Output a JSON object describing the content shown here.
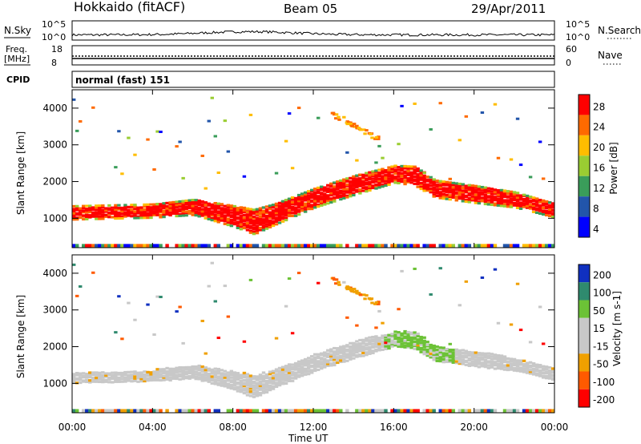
{
  "header": {
    "station": "Hokkaido (fitACF)",
    "beam": "Beam 05",
    "date": "29/Apr/2011"
  },
  "noise_panel": {
    "left_label": "N.Sky",
    "right_label": "N.Search",
    "left_ticks": [
      "10^5",
      "10^0"
    ],
    "right_ticks": [
      "10^5",
      "10^0"
    ]
  },
  "freq_panel": {
    "left_label_1": "Freq.",
    "left_label_2": "[MHz]",
    "right_label": "Nave",
    "left_ticks": [
      "18",
      "8"
    ],
    "right_ticks": [
      "60",
      "0"
    ]
  },
  "cpid_panel": {
    "label": "CPID",
    "value": "normal (fast) 151"
  },
  "chart_data": [
    {
      "type": "heatmap",
      "name": "power",
      "ylabel": "Slant Range [km]",
      "yticks": [
        1000,
        2000,
        3000,
        4000
      ],
      "ylim": [
        200,
        4500
      ],
      "colorbar": {
        "label": "Power [dB]",
        "ticks": [
          "28",
          "24",
          "20",
          "16",
          "12",
          "8",
          "4"
        ],
        "colors": [
          "#ff0000",
          "#ff6a00",
          "#ffbd00",
          "#9acd32",
          "#3a9d5a",
          "#2255aa",
          "#0000ff"
        ]
      },
      "bands": [
        {
          "x": [
            0,
            4,
            6,
            8,
            9,
            10,
            12,
            14,
            16,
            17,
            18,
            20,
            22,
            24
          ],
          "y_center": [
            1150,
            1200,
            1300,
            1050,
            900,
            1100,
            1550,
            1900,
            2200,
            2150,
            1800,
            1650,
            1500,
            1200
          ],
          "thickness": [
            300,
            300,
            350,
            500,
            600,
            500,
            450,
            450,
            400,
            450,
            400,
            400,
            350,
            300
          ],
          "level": "28"
        }
      ]
    },
    {
      "type": "heatmap",
      "name": "velocity",
      "ylabel": "Slant Range [km]",
      "yticks": [
        1000,
        2000,
        3000,
        4000
      ],
      "ylim": [
        200,
        4500
      ],
      "colorbar": {
        "label": "Velocity [m s-1]",
        "ticks": [
          "200",
          "100",
          "50",
          "15",
          "-15",
          "-50",
          "-100",
          "-200"
        ],
        "colors": [
          "#1030c0",
          "#2f8a6e",
          "#6cc236",
          "#c8c8c8",
          "#c8c8c8",
          "#f0a000",
          "#ff5a00",
          "#ff0000"
        ]
      }
    }
  ],
  "xaxis": {
    "label": "Time UT",
    "ticks": [
      "00:00",
      "04:00",
      "08:00",
      "12:00",
      "16:00",
      "20:00",
      "00:00"
    ],
    "range_hours": [
      0,
      24
    ]
  },
  "colors": {
    "echo_red": "#ff0000",
    "echo_grey": "#c8c8c8",
    "echo_green": "#6cc236"
  }
}
